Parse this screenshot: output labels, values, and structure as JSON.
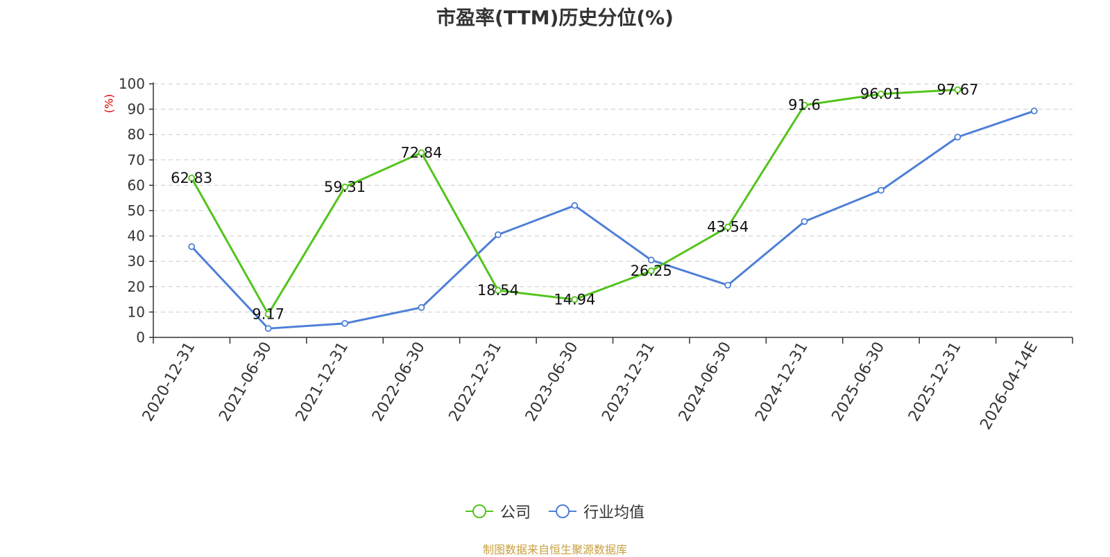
{
  "colors": {
    "company": "#52c41a",
    "industry": "#4e7fd8",
    "axis": "#333333",
    "grid": "#cccccc",
    "ylabel": "#e00000",
    "source": "#c8a040"
  },
  "chart_data": {
    "type": "line",
    "title": "市盈率(TTM)历史分位(%)",
    "ylabel": "(%)",
    "xlabel": "",
    "ylim": [
      0,
      100
    ],
    "yticks": [
      0,
      10,
      20,
      30,
      40,
      50,
      60,
      70,
      80,
      90,
      100
    ],
    "grid": "horizontal dashed",
    "legend_position": "bottom",
    "categories": [
      "2020-12-31",
      "2021-06-30",
      "2021-12-31",
      "2022-06-30",
      "2022-12-31",
      "2023-06-30",
      "2023-12-31",
      "2024-06-30",
      "2024-12-31",
      "2025-06-30",
      "2025-12-31",
      "2026-04-14E"
    ],
    "series": [
      {
        "name": "公司",
        "values": [
          62.83,
          9.17,
          59.31,
          72.84,
          18.54,
          14.94,
          26.25,
          43.54,
          91.6,
          96.01,
          97.67,
          null
        ],
        "labels": [
          "62.83",
          "9.17",
          "59.31",
          "72.84",
          "18.54",
          "14.94",
          "26.25",
          "43.54",
          "91.6",
          "96.01",
          "97.67",
          ""
        ]
      },
      {
        "name": "行业均值",
        "values": [
          35.8,
          3.5,
          5.5,
          11.8,
          40.5,
          52,
          30.5,
          20.6,
          45.7,
          58,
          79,
          89.3
        ]
      }
    ]
  },
  "source_text": "制图数据来自恒生聚源数据库"
}
